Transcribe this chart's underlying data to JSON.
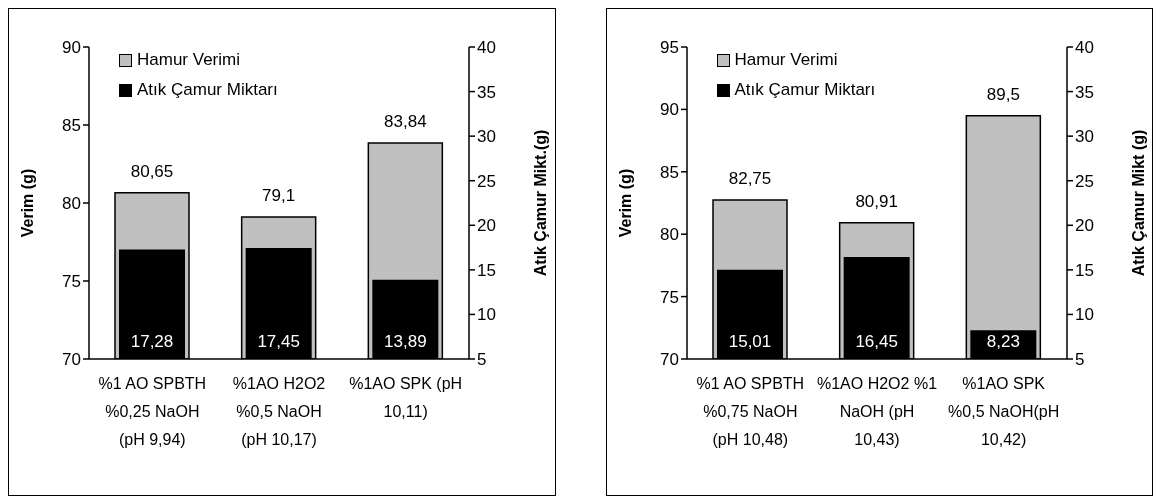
{
  "chart_data": [
    {
      "type": "bar",
      "ylabel": "Verim (g)",
      "y2label": "Atık Çamur Mikt.(g)",
      "categories": [
        "%1 AO SPBTH %0,25 NaOH (pH 9,94)",
        "%1AO H2O2 %0,5 NaOH (pH 10,17)",
        "%1AO SPK (pH 10,11)"
      ],
      "series": [
        {
          "name": "Hamur Verimi",
          "color": "#c0c0c0",
          "values": [
            80.65,
            79.1,
            83.84
          ],
          "value_labels": [
            "80,65",
            "79,1",
            "83,84"
          ]
        },
        {
          "name": "Atık Çamur Miktarı",
          "color": "#000000",
          "axis": "y2",
          "values": [
            17.28,
            17.45,
            13.89
          ],
          "value_labels": [
            "17,28",
            "17,45",
            "13,89"
          ]
        }
      ],
      "ylim": [
        70,
        90
      ],
      "yticks": [
        70,
        75,
        80,
        85,
        90
      ],
      "y2lim": [
        5,
        40
      ],
      "y2ticks": [
        5,
        10,
        15,
        20,
        25,
        30,
        35,
        40
      ],
      "grid": false,
      "legend": "top left"
    },
    {
      "type": "bar",
      "ylabel": "Verim (g)",
      "y2label": "Atık Çamur Mikt (g)",
      "categories": [
        "%1 AO SPBTH %0,75 NaOH (pH 10,48)",
        "%1AO H2O2 %1 NaOH (pH 10,43)",
        "%1AO SPK %0,5 NaOH(pH 10,42)"
      ],
      "series": [
        {
          "name": "Hamur Verimi",
          "color": "#c0c0c0",
          "values": [
            82.75,
            80.91,
            89.5
          ],
          "value_labels": [
            "82,75",
            "80,91",
            "89,5"
          ]
        },
        {
          "name": "Atık Çamur Miktarı",
          "color": "#000000",
          "axis": "y2",
          "values": [
            15.01,
            16.45,
            8.23
          ],
          "value_labels": [
            "15,01",
            "16,45",
            "8,23"
          ]
        }
      ],
      "ylim": [
        70,
        95
      ],
      "yticks": [
        70,
        75,
        80,
        85,
        90,
        95
      ],
      "y2lim": [
        5,
        40
      ],
      "y2ticks": [
        5,
        10,
        15,
        20,
        25,
        30,
        35,
        40
      ],
      "grid": false,
      "legend": "top left"
    }
  ]
}
